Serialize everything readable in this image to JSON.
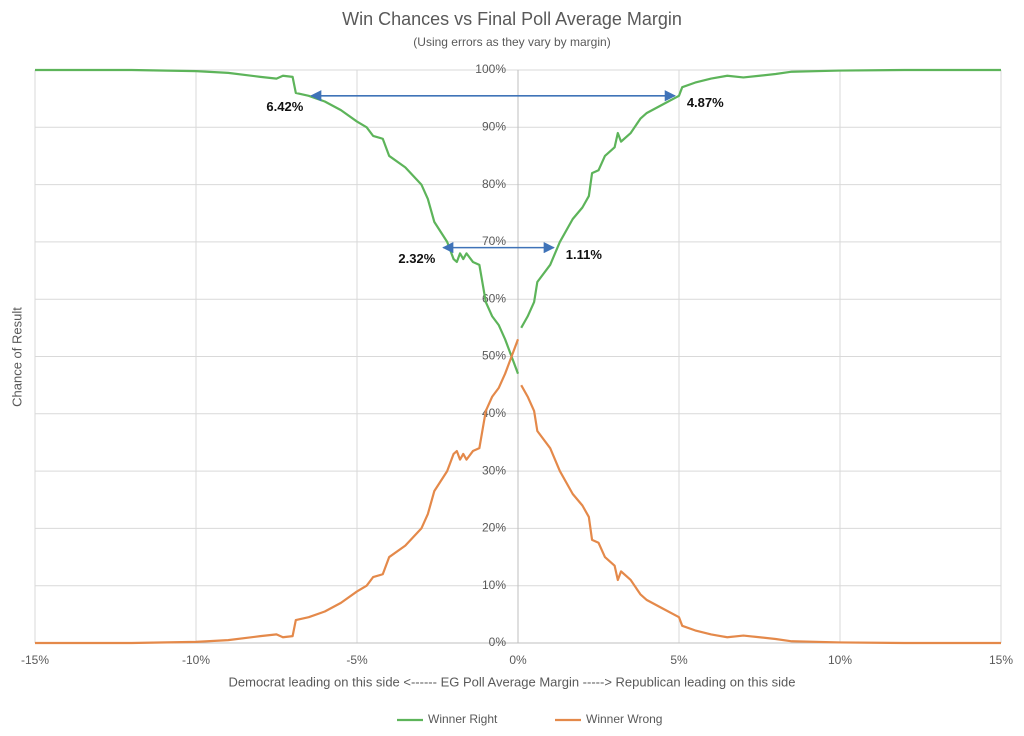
{
  "chart_data": {
    "type": "line",
    "title": "Win Chances vs Final Poll Average Margin",
    "subtitle": "(Using errors as they vary by margin)",
    "x_label": "Democrat leading on this side <------ EG Poll Average Margin -----> Republican leading on this side",
    "y_label": "Chance of Result",
    "x": [
      -15,
      -12,
      -10,
      -9,
      -8,
      -7.5,
      -7.3,
      -7,
      -6.9,
      -6.5,
      -6,
      -5.5,
      -5,
      -4.7,
      -4.5,
      -4.2,
      -4,
      -3.5,
      -3,
      -2.8,
      -2.6,
      -2.2,
      -2,
      -1.9,
      -1.8,
      -1.7,
      -1.6,
      -1.4,
      -1.2,
      -1,
      -0.8,
      -0.6,
      -0.4,
      -0.2,
      0,
      0.05,
      0.1,
      0.3,
      0.5,
      0.6,
      1,
      1.3,
      1.7,
      2,
      2.2,
      2.3,
      2.5,
      2.7,
      2.9,
      3,
      3.1,
      3.2,
      3.5,
      3.8,
      4,
      4.5,
      5,
      5.1,
      5.5,
      6,
      6.5,
      7,
      7.5,
      8,
      8.5,
      10,
      12,
      15
    ],
    "series": [
      {
        "name": "Winner Right",
        "color": "#5db45a",
        "values": [
          100,
          100,
          99.8,
          99.5,
          98.8,
          98.5,
          99,
          98.8,
          96,
          95.5,
          94.5,
          93,
          91,
          90,
          88.5,
          88,
          85,
          83,
          80,
          77.5,
          73.5,
          70,
          67,
          66.5,
          68,
          67,
          68,
          66.5,
          66,
          59.5,
          57,
          55.5,
          53,
          50,
          47,
          null,
          55,
          57,
          59.5,
          63,
          66,
          70,
          74,
          76,
          78,
          82,
          82.5,
          85,
          86,
          86.5,
          89,
          87.5,
          89,
          91.5,
          92.5,
          94,
          95.5,
          97,
          97.8,
          98.5,
          99,
          98.7,
          99,
          99.3,
          99.7,
          99.9,
          100,
          100
        ]
      },
      {
        "name": "Winner Wrong",
        "color": "#e4894a",
        "values": [
          0,
          0,
          0.2,
          0.5,
          1.2,
          1.5,
          1,
          1.2,
          4,
          4.5,
          5.5,
          7,
          9,
          10,
          11.5,
          12,
          15,
          17,
          20,
          22.5,
          26.5,
          30,
          33,
          33.5,
          32,
          33,
          32,
          33.5,
          34,
          40.5,
          43,
          44.5,
          47,
          50,
          53,
          null,
          45,
          43,
          40.5,
          37,
          34,
          30,
          26,
          24,
          22,
          18,
          17.5,
          15,
          14,
          13.5,
          11,
          12.5,
          11,
          8.5,
          7.5,
          6,
          4.5,
          3,
          2.2,
          1.5,
          1,
          1.3,
          1,
          0.7,
          0.3,
          0.1,
          0,
          0
        ]
      }
    ],
    "annotations": [
      {
        "y": 95.5,
        "x": [
          -6.42,
          4.87
        ],
        "labels": [
          "6.42%",
          "4.87%"
        ],
        "color": "#3f73b8"
      },
      {
        "y": 69,
        "x": [
          -2.32,
          1.11
        ],
        "labels": [
          "2.32%",
          "1.11%"
        ],
        "color": "#3f73b8"
      }
    ],
    "xlim": [
      -15,
      15
    ],
    "xticks": [
      {
        "value": -15,
        "label": "-15%"
      },
      {
        "value": -10,
        "label": "-10%"
      },
      {
        "value": -5,
        "label": "-5%"
      },
      {
        "value": 0,
        "label": "0%"
      },
      {
        "value": 5,
        "label": "5%"
      },
      {
        "value": 10,
        "label": "10%"
      },
      {
        "value": 15,
        "label": "15%"
      }
    ],
    "ylim": [
      0,
      100
    ],
    "yticks": [
      {
        "value": 0,
        "label": "0%"
      },
      {
        "value": 10,
        "label": "10%"
      },
      {
        "value": 20,
        "label": "20%"
      },
      {
        "value": 30,
        "label": "30%"
      },
      {
        "value": 40,
        "label": "40%"
      },
      {
        "value": 50,
        "label": "50%"
      },
      {
        "value": 60,
        "label": "60%"
      },
      {
        "value": 70,
        "label": "70%"
      },
      {
        "value": 80,
        "label": "80%"
      },
      {
        "value": 90,
        "label": "90%"
      },
      {
        "value": 100,
        "label": "100%"
      }
    ],
    "grid": true,
    "legend": "bottom"
  }
}
